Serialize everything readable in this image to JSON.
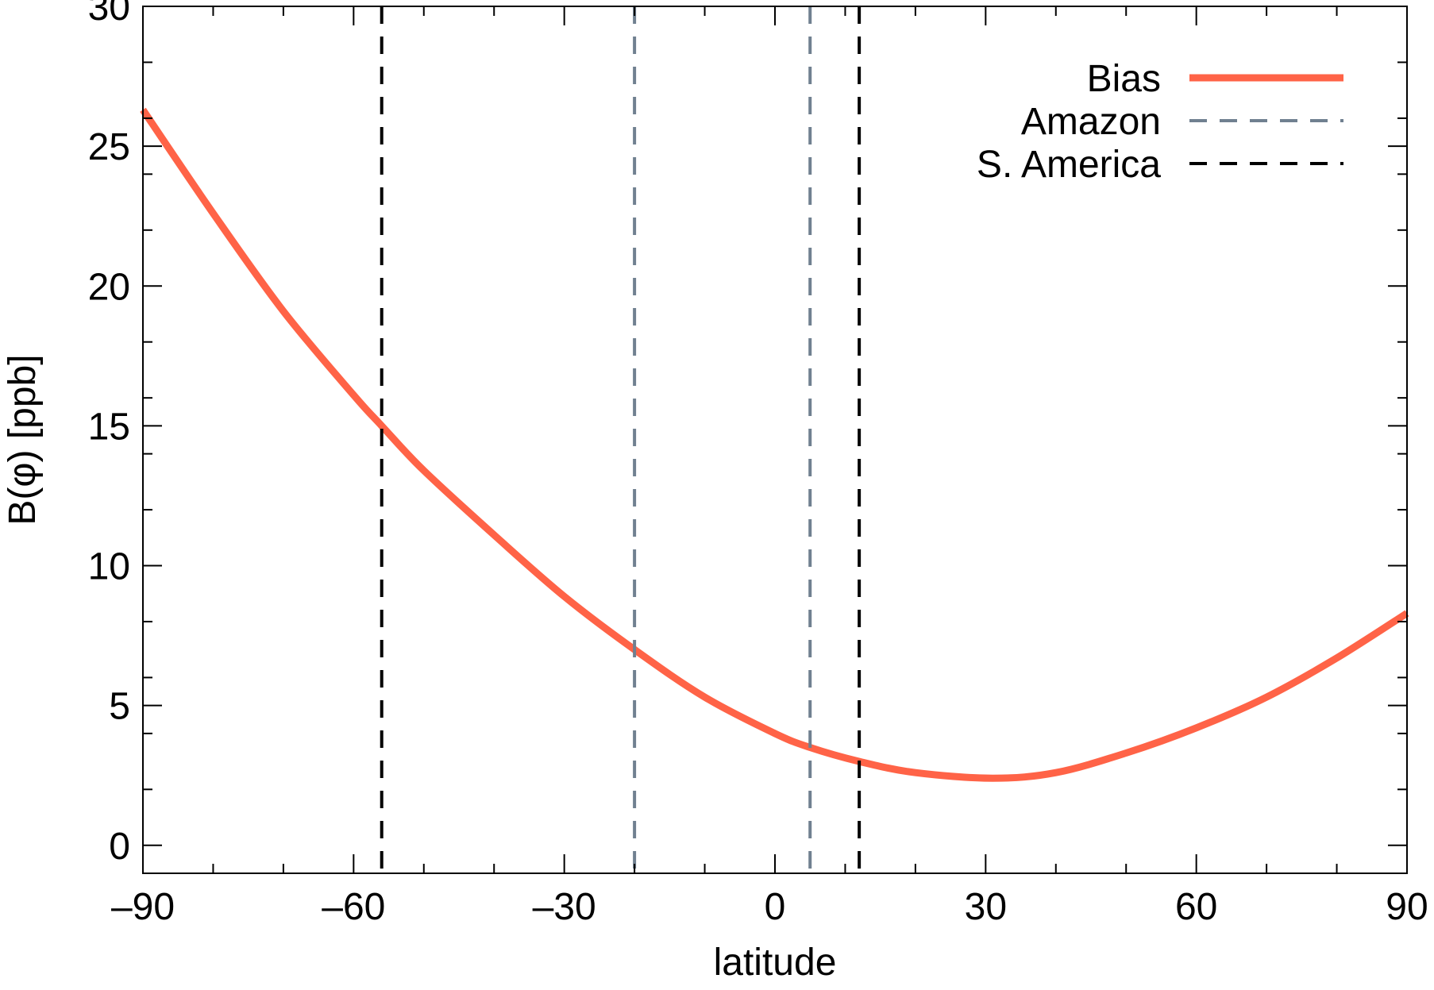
{
  "chart_data": {
    "type": "line",
    "title": "",
    "xlabel": "latitude",
    "ylabel": "B(φ) [ppb]",
    "xlim": [
      -90,
      90
    ],
    "ylim": [
      -1,
      30
    ],
    "x_ticks": [
      -90,
      -60,
      -30,
      0,
      30,
      60,
      90
    ],
    "x_tick_labels": [
      "–90",
      "–60",
      "–30",
      "0",
      "30",
      "60",
      "90"
    ],
    "y_ticks": [
      0,
      5,
      10,
      15,
      20,
      25,
      30
    ],
    "y_tick_labels": [
      "0",
      "5",
      "10",
      "15",
      "20",
      "25",
      "30"
    ],
    "grid": false,
    "legend": "top-right",
    "series": [
      {
        "name": "Bias",
        "color": "#ff6347",
        "style": "solid",
        "x": [
          -90,
          -80,
          -70,
          -60,
          -56,
          -50,
          -40,
          -30,
          -20,
          -10,
          0,
          5,
          12,
          20,
          31,
          40,
          50,
          60,
          70,
          80,
          90
        ],
        "y": [
          26.3,
          22.6,
          19.1,
          16.1,
          15.0,
          13.4,
          11.1,
          8.9,
          7.0,
          5.3,
          4.0,
          3.5,
          3.0,
          2.6,
          2.4,
          2.6,
          3.3,
          4.2,
          5.3,
          6.7,
          8.3
        ]
      },
      {
        "name": "Amazon",
        "color": "#708090",
        "style": "dashed",
        "vlines": [
          -20,
          5
        ]
      },
      {
        "name": "S. America",
        "color": "#000000",
        "style": "dashed",
        "vlines": [
          -56,
          12
        ]
      }
    ]
  }
}
